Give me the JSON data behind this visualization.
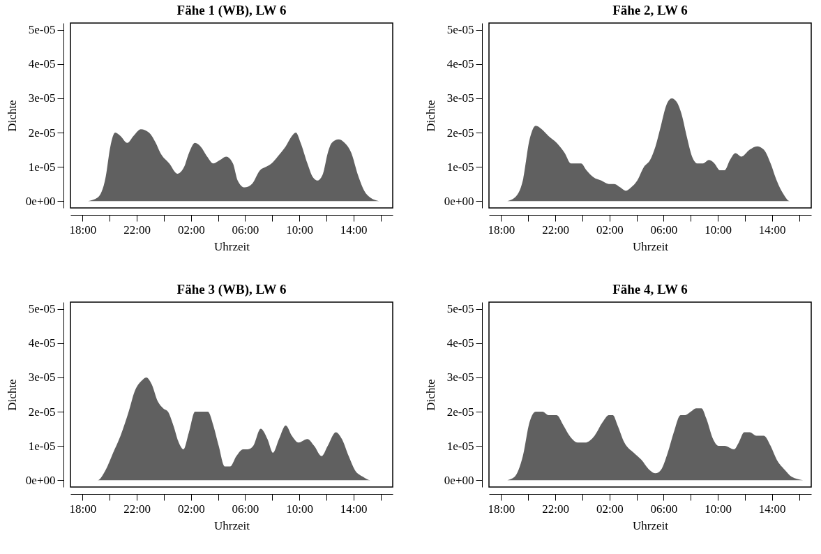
{
  "chart_data": [
    {
      "type": "area",
      "title": "Fähe 1 (WB), LW 6",
      "xlabel": "Uhrzeit",
      "ylabel": "Dichte",
      "color": "#606060",
      "x": [
        "2000-01-01T18:24",
        "2000-01-01T19:06",
        "2000-01-01T19:42",
        "2000-01-01T20:03",
        "2000-01-01T20:24",
        "2000-01-01T20:48",
        "2000-01-01T21:18",
        "2000-01-01T21:45",
        "2000-01-01T22:18",
        "2000-01-01T22:54",
        "2000-01-01T23:24",
        "2000-01-01T23:45",
        "2000-01-02T00:24",
        "2000-01-02T01:00",
        "2000-01-02T01:30",
        "2000-01-02T01:51",
        "2000-01-02T02:18",
        "2000-01-02T02:42",
        "2000-01-02T03:12",
        "2000-01-02T03:39",
        "2000-01-02T04:09",
        "2000-01-02T04:36",
        "2000-01-02T05:06",
        "2000-01-02T05:27",
        "2000-01-02T05:57",
        "2000-01-02T06:30",
        "2000-01-02T07:06",
        "2000-01-02T07:33",
        "2000-01-02T07:57",
        "2000-01-02T08:24",
        "2000-01-02T09:00",
        "2000-01-02T09:27",
        "2000-01-02T09:45",
        "2000-01-02T10:06",
        "2000-01-02T10:36",
        "2000-01-02T11:00",
        "2000-01-02T11:21",
        "2000-01-02T11:45",
        "2000-01-02T12:06",
        "2000-01-02T12:24",
        "2000-01-02T12:54",
        "2000-01-02T13:21",
        "2000-01-02T13:51",
        "2000-01-02T14:18",
        "2000-01-02T14:48",
        "2000-01-02T15:15",
        "2000-01-02T15:54"
      ],
      "values": [
        0,
        1e-06,
        7e-06,
        1.6e-05,
        2e-05,
        1.9e-05,
        1.7e-05,
        1.9e-05,
        2.1e-05,
        2e-05,
        1.7e-05,
        1.4e-05,
        1.1e-05,
        8e-06,
        1e-05,
        1.4e-05,
        1.7e-05,
        1.6e-05,
        1.3e-05,
        1.1e-05,
        1.2e-05,
        1.3e-05,
        1.1e-05,
        6e-06,
        4e-06,
        5e-06,
        9e-06,
        1e-05,
        1.1e-05,
        1.3e-05,
        1.6e-05,
        1.9e-05,
        2e-05,
        1.7e-05,
        1.1e-05,
        7e-06,
        6e-06,
        8e-06,
        1.4e-05,
        1.7e-05,
        1.8e-05,
        1.7e-05,
        1.4e-05,
        8e-06,
        3e-06,
        1e-06,
        0
      ],
      "xlim": [
        "2000-01-01T17:06",
        "2000-01-02T16:54"
      ],
      "ylim": [
        -2e-06,
        5.2e-05
      ],
      "xticks": [
        {
          "value": "2000-01-01T18:00",
          "label": "18:00"
        },
        {
          "value": "2000-01-01T20:00",
          "label": null
        },
        {
          "value": "2000-01-01T22:00",
          "label": "22:00"
        },
        {
          "value": "2000-01-02T00:00",
          "label": null
        },
        {
          "value": "2000-01-02T02:00",
          "label": "02:00"
        },
        {
          "value": "2000-01-02T04:00",
          "label": null
        },
        {
          "value": "2000-01-02T06:00",
          "label": "06:00"
        },
        {
          "value": "2000-01-02T08:00",
          "label": null
        },
        {
          "value": "2000-01-02T10:00",
          "label": "10:00"
        },
        {
          "value": "2000-01-02T12:00",
          "label": null
        },
        {
          "value": "2000-01-02T14:00",
          "label": "14:00"
        },
        {
          "value": "2000-01-02T16:00",
          "label": null
        }
      ],
      "yticks": [
        {
          "value": 0,
          "label": "0e+00"
        },
        {
          "value": 1e-05,
          "label": "1e-05"
        },
        {
          "value": 2e-05,
          "label": "2e-05"
        },
        {
          "value": 3e-05,
          "label": "3e-05"
        },
        {
          "value": 4e-05,
          "label": "4e-05"
        },
        {
          "value": 5e-05,
          "label": "5e-05"
        }
      ]
    },
    {
      "type": "area",
      "title": "Fähe 2, LW 6",
      "xlabel": "Uhrzeit",
      "ylabel": "Dichte",
      "color": "#606060",
      "x": [
        "2000-01-01T18:27",
        "2000-01-01T19:00",
        "2000-01-01T19:36",
        "2000-01-01T20:06",
        "2000-01-01T20:33",
        "2000-01-01T21:00",
        "2000-01-01T21:30",
        "2000-01-01T22:06",
        "2000-01-01T22:42",
        "2000-01-01T23:09",
        "2000-01-01T23:33",
        "2000-01-01T23:54",
        "2000-01-02T00:18",
        "2000-01-02T00:48",
        "2000-01-02T01:24",
        "2000-01-02T01:57",
        "2000-01-02T02:21",
        "2000-01-02T02:48",
        "2000-01-02T03:12",
        "2000-01-02T03:36",
        "2000-01-02T04:03",
        "2000-01-02T04:33",
        "2000-01-02T05:00",
        "2000-01-02T05:24",
        "2000-01-02T05:48",
        "2000-01-02T06:12",
        "2000-01-02T06:36",
        "2000-01-02T06:57",
        "2000-01-02T07:21",
        "2000-01-02T07:42",
        "2000-01-02T08:06",
        "2000-01-02T08:30",
        "2000-01-02T08:54",
        "2000-01-02T09:21",
        "2000-01-02T09:45",
        "2000-01-02T10:09",
        "2000-01-02T10:30",
        "2000-01-02T10:54",
        "2000-01-02T11:18",
        "2000-01-02T11:45",
        "2000-01-02T12:21",
        "2000-01-02T12:54",
        "2000-01-02T13:24",
        "2000-01-02T13:54",
        "2000-01-02T14:21",
        "2000-01-02T14:51",
        "2000-01-02T15:18",
        "2000-01-02T16:18"
      ],
      "values": [
        0,
        1e-06,
        6e-06,
        1.8e-05,
        2.2e-05,
        2.1e-05,
        1.9e-05,
        1.7e-05,
        1.4e-05,
        1.1e-05,
        1.1e-05,
        1.1e-05,
        9e-06,
        7e-06,
        6e-06,
        5e-06,
        5e-06,
        4e-06,
        3e-06,
        4e-06,
        6e-06,
        1e-05,
        1.2e-05,
        1.6e-05,
        2.2e-05,
        2.8e-05,
        3e-05,
        2.9e-05,
        2.5e-05,
        1.9e-05,
        1.3e-05,
        1.1e-05,
        1.1e-05,
        1.2e-05,
        1.1e-05,
        9e-06,
        9e-06,
        1.2e-05,
        1.4e-05,
        1.3e-05,
        1.5e-05,
        1.6e-05,
        1.5e-05,
        1.1e-05,
        6e-06,
        2e-06,
        0,
        0
      ],
      "xlim": [
        "2000-01-01T17:06",
        "2000-01-02T16:54"
      ],
      "ylim": [
        -2e-06,
        5.2e-05
      ],
      "xticks": [
        {
          "value": "2000-01-01T18:00",
          "label": "18:00"
        },
        {
          "value": "2000-01-01T20:00",
          "label": null
        },
        {
          "value": "2000-01-01T22:00",
          "label": "22:00"
        },
        {
          "value": "2000-01-02T00:00",
          "label": null
        },
        {
          "value": "2000-01-02T02:00",
          "label": "02:00"
        },
        {
          "value": "2000-01-02T04:00",
          "label": null
        },
        {
          "value": "2000-01-02T06:00",
          "label": "06:00"
        },
        {
          "value": "2000-01-02T08:00",
          "label": null
        },
        {
          "value": "2000-01-02T10:00",
          "label": "10:00"
        },
        {
          "value": "2000-01-02T12:00",
          "label": null
        },
        {
          "value": "2000-01-02T14:00",
          "label": "14:00"
        },
        {
          "value": "2000-01-02T16:00",
          "label": null
        }
      ],
      "yticks": [
        {
          "value": 0,
          "label": "0e+00"
        },
        {
          "value": 1e-05,
          "label": "1e-05"
        },
        {
          "value": 2e-05,
          "label": "2e-05"
        },
        {
          "value": 3e-05,
          "label": "3e-05"
        },
        {
          "value": 4e-05,
          "label": "4e-05"
        },
        {
          "value": 5e-05,
          "label": "5e-05"
        }
      ]
    },
    {
      "type": "area",
      "title": "Fähe 3 (WB), LW 6",
      "xlabel": "Uhrzeit",
      "ylabel": "Dichte",
      "color": "#606060",
      "x": [
        "2000-01-01T18:30",
        "2000-01-01T19:06",
        "2000-01-01T19:42",
        "2000-01-01T20:15",
        "2000-01-01T20:48",
        "2000-01-01T21:24",
        "2000-01-01T21:51",
        "2000-01-01T22:21",
        "2000-01-01T22:42",
        "2000-01-01T23:06",
        "2000-01-01T23:33",
        "2000-01-01T23:57",
        "2000-01-02T00:18",
        "2000-01-02T00:42",
        "2000-01-02T01:06",
        "2000-01-02T01:27",
        "2000-01-02T01:51",
        "2000-01-02T02:18",
        "2000-01-02T02:48",
        "2000-01-02T03:15",
        "2000-01-02T03:39",
        "2000-01-02T04:03",
        "2000-01-02T04:30",
        "2000-01-02T04:54",
        "2000-01-02T05:21",
        "2000-01-02T05:51",
        "2000-01-02T06:12",
        "2000-01-02T06:36",
        "2000-01-02T07:09",
        "2000-01-02T07:39",
        "2000-01-02T08:03",
        "2000-01-02T08:30",
        "2000-01-02T09:00",
        "2000-01-02T09:27",
        "2000-01-02T09:57",
        "2000-01-02T10:36",
        "2000-01-02T11:06",
        "2000-01-02T11:39",
        "2000-01-02T12:06",
        "2000-01-02T12:42",
        "2000-01-02T13:09",
        "2000-01-02T13:39",
        "2000-01-02T14:06",
        "2000-01-02T14:42",
        "2000-01-02T15:15",
        "2000-01-02T16:12"
      ],
      "values": [
        0,
        0,
        3e-06,
        8e-06,
        1.3e-05,
        2e-05,
        2.6e-05,
        2.9e-05,
        3e-05,
        2.8e-05,
        2.3e-05,
        2.1e-05,
        2e-05,
        1.6e-05,
        1.1e-05,
        9e-06,
        1.4e-05,
        2e-05,
        2e-05,
        2e-05,
        1.6e-05,
        1e-05,
        4e-06,
        4e-06,
        7e-06,
        9e-06,
        9e-06,
        1e-05,
        1.5e-05,
        1.2e-05,
        8e-06,
        1.2e-05,
        1.6e-05,
        1.3e-05,
        1.1e-05,
        1.2e-05,
        1e-05,
        7e-06,
        1e-05,
        1.4e-05,
        1.2e-05,
        7e-06,
        3e-06,
        1e-06,
        0,
        0
      ],
      "xlim": [
        "2000-01-01T17:06",
        "2000-01-02T16:54"
      ],
      "ylim": [
        -2e-06,
        5.2e-05
      ],
      "xticks": [
        {
          "value": "2000-01-01T18:00",
          "label": "18:00"
        },
        {
          "value": "2000-01-01T20:00",
          "label": null
        },
        {
          "value": "2000-01-01T22:00",
          "label": "22:00"
        },
        {
          "value": "2000-01-02T00:00",
          "label": null
        },
        {
          "value": "2000-01-02T02:00",
          "label": "02:00"
        },
        {
          "value": "2000-01-02T04:00",
          "label": null
        },
        {
          "value": "2000-01-02T06:00",
          "label": "06:00"
        },
        {
          "value": "2000-01-02T08:00",
          "label": null
        },
        {
          "value": "2000-01-02T10:00",
          "label": "10:00"
        },
        {
          "value": "2000-01-02T12:00",
          "label": null
        },
        {
          "value": "2000-01-02T14:00",
          "label": "14:00"
        },
        {
          "value": "2000-01-02T16:00",
          "label": null
        }
      ],
      "yticks": [
        {
          "value": 0,
          "label": "0e+00"
        },
        {
          "value": 1e-05,
          "label": "1e-05"
        },
        {
          "value": 2e-05,
          "label": "2e-05"
        },
        {
          "value": 3e-05,
          "label": "3e-05"
        },
        {
          "value": 4e-05,
          "label": "4e-05"
        },
        {
          "value": 5e-05,
          "label": "5e-05"
        }
      ]
    },
    {
      "type": "area",
      "title": "Fähe 4, LW 6",
      "xlabel": "Uhrzeit",
      "ylabel": "Dichte",
      "color": "#606060",
      "x": [
        "2000-01-01T18:27",
        "2000-01-01T19:00",
        "2000-01-01T19:36",
        "2000-01-01T20:06",
        "2000-01-01T20:33",
        "2000-01-01T21:03",
        "2000-01-01T21:30",
        "2000-01-01T22:06",
        "2000-01-01T22:36",
        "2000-01-01T23:03",
        "2000-01-01T23:39",
        "2000-01-02T00:12",
        "2000-01-02T00:54",
        "2000-01-02T01:30",
        "2000-01-02T01:57",
        "2000-01-02T02:15",
        "2000-01-02T02:36",
        "2000-01-02T03:06",
        "2000-01-02T03:48",
        "2000-01-02T04:21",
        "2000-01-02T04:57",
        "2000-01-02T05:24",
        "2000-01-02T05:48",
        "2000-01-02T06:18",
        "2000-01-02T06:45",
        "2000-01-02T07:15",
        "2000-01-02T07:36",
        "2000-01-02T08:00",
        "2000-01-02T08:24",
        "2000-01-02T08:48",
        "2000-01-02T09:09",
        "2000-01-02T09:39",
        "2000-01-02T10:03",
        "2000-01-02T10:30",
        "2000-01-02T11:12",
        "2000-01-02T11:33",
        "2000-01-02T11:57",
        "2000-01-02T12:21",
        "2000-01-02T12:51",
        "2000-01-02T13:24",
        "2000-01-02T13:54",
        "2000-01-02T14:21",
        "2000-01-02T14:57",
        "2000-01-02T15:27",
        "2000-01-02T16:18"
      ],
      "values": [
        0,
        1e-06,
        7e-06,
        1.7e-05,
        2e-05,
        2e-05,
        1.9e-05,
        1.9e-05,
        1.6e-05,
        1.3e-05,
        1.1e-05,
        1.1e-05,
        1.3e-05,
        1.7e-05,
        1.9e-05,
        1.9e-05,
        1.6e-05,
        1.1e-05,
        8e-06,
        6e-06,
        3e-06,
        2e-06,
        3e-06,
        8e-06,
        1.4e-05,
        1.9e-05,
        1.9e-05,
        2e-05,
        2.1e-05,
        2.1e-05,
        1.8e-05,
        1.2e-05,
        1e-05,
        1e-05,
        9e-06,
        1.1e-05,
        1.4e-05,
        1.4e-05,
        1.3e-05,
        1.3e-05,
        1e-05,
        6e-06,
        3e-06,
        1e-06,
        0
      ],
      "xlim": [
        "2000-01-01T17:06",
        "2000-01-02T16:54"
      ],
      "ylim": [
        -2e-06,
        5.2e-05
      ],
      "xticks": [
        {
          "value": "2000-01-01T18:00",
          "label": "18:00"
        },
        {
          "value": "2000-01-01T20:00",
          "label": null
        },
        {
          "value": "2000-01-01T22:00",
          "label": "22:00"
        },
        {
          "value": "2000-01-02T00:00",
          "label": null
        },
        {
          "value": "2000-01-02T02:00",
          "label": "02:00"
        },
        {
          "value": "2000-01-02T04:00",
          "label": null
        },
        {
          "value": "2000-01-02T06:00",
          "label": "06:00"
        },
        {
          "value": "2000-01-02T08:00",
          "label": null
        },
        {
          "value": "2000-01-02T10:00",
          "label": "10:00"
        },
        {
          "value": "2000-01-02T12:00",
          "label": null
        },
        {
          "value": "2000-01-02T14:00",
          "label": "14:00"
        },
        {
          "value": "2000-01-02T16:00",
          "label": null
        }
      ],
      "yticks": [
        {
          "value": 0,
          "label": "0e+00"
        },
        {
          "value": 1e-05,
          "label": "1e-05"
        },
        {
          "value": 2e-05,
          "label": "2e-05"
        },
        {
          "value": 3e-05,
          "label": "3e-05"
        },
        {
          "value": 4e-05,
          "label": "4e-05"
        },
        {
          "value": 5e-05,
          "label": "5e-05"
        }
      ]
    }
  ]
}
